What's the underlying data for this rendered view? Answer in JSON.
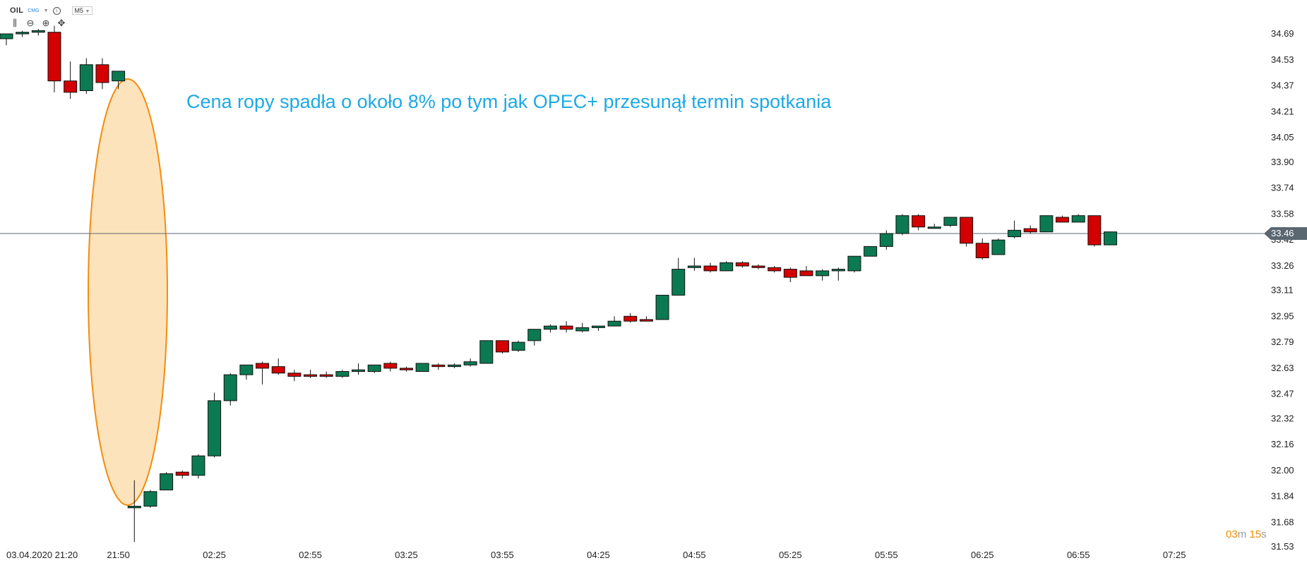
{
  "header": {
    "symbol": "OIL",
    "exchange": "CMG",
    "info_icon": "info-icon",
    "timeframe": "M5"
  },
  "tools": [
    "bar-style-icon",
    "zoom-out-icon",
    "zoom-in-icon",
    "crosshair-icon"
  ],
  "annotation": "Cena ropy spadła o około 8% po tym jak OPEC+ przesunął termin spotkania",
  "timer": {
    "minutes": "03",
    "m_unit": "m",
    "seconds": "15",
    "s_unit": "s"
  },
  "colors": {
    "up": "#0b7a52",
    "down": "#d40000",
    "current_line": "#5a6670",
    "ellipse_fill": "#fde3bb",
    "ellipse_stroke": "#f28c0f",
    "annotation": "#1ca9e6"
  },
  "chart_data": {
    "type": "candlestick",
    "symbol": "OIL",
    "timeframe": "M5",
    "current_price": 33.46,
    "y_ticks": [
      34.69,
      34.53,
      34.37,
      34.21,
      34.05,
      33.9,
      33.74,
      33.58,
      33.42,
      33.26,
      33.11,
      32.95,
      32.79,
      32.63,
      32.47,
      32.32,
      32.16,
      32.0,
      31.84,
      31.68,
      31.53
    ],
    "x_ticks": [
      {
        "label": "03.04.2020 21:20",
        "index": 3
      },
      {
        "label": "21:50",
        "index": 7
      },
      {
        "label": "02:25",
        "index": 13
      },
      {
        "label": "02:55",
        "index": 19
      },
      {
        "label": "03:25",
        "index": 25
      },
      {
        "label": "03:55",
        "index": 31
      },
      {
        "label": "04:25",
        "index": 37
      },
      {
        "label": "04:55",
        "index": 43
      },
      {
        "label": "05:25",
        "index": 49
      },
      {
        "label": "05:55",
        "index": 55
      },
      {
        "label": "06:25",
        "index": 61
      },
      {
        "label": "06:55",
        "index": 67
      },
      {
        "label": "07:25",
        "index": 73
      }
    ],
    "candles": [
      {
        "o": 34.66,
        "h": 34.69,
        "l": 34.62,
        "c": 34.69
      },
      {
        "o": 34.69,
        "h": 34.71,
        "l": 34.67,
        "c": 34.7
      },
      {
        "o": 34.7,
        "h": 34.72,
        "l": 34.68,
        "c": 34.71
      },
      {
        "o": 34.7,
        "h": 34.74,
        "l": 34.33,
        "c": 34.4
      },
      {
        "o": 34.4,
        "h": 34.52,
        "l": 34.29,
        "c": 34.33
      },
      {
        "o": 34.34,
        "h": 34.54,
        "l": 34.32,
        "c": 34.5
      },
      {
        "o": 34.5,
        "h": 34.54,
        "l": 34.35,
        "c": 34.39
      },
      {
        "o": 34.4,
        "h": 34.46,
        "l": 34.35,
        "c": 34.46
      },
      {
        "o": 31.77,
        "h": 31.94,
        "l": 31.56,
        "c": 31.78
      },
      {
        "o": 31.78,
        "h": 31.88,
        "l": 31.77,
        "c": 31.87
      },
      {
        "o": 31.88,
        "h": 31.99,
        "l": 31.88,
        "c": 31.98
      },
      {
        "o": 31.99,
        "h": 32.0,
        "l": 31.95,
        "c": 31.97
      },
      {
        "o": 31.97,
        "h": 32.1,
        "l": 31.95,
        "c": 32.09
      },
      {
        "o": 32.09,
        "h": 32.48,
        "l": 32.08,
        "c": 32.43
      },
      {
        "o": 32.43,
        "h": 32.6,
        "l": 32.4,
        "c": 32.59
      },
      {
        "o": 32.59,
        "h": 32.65,
        "l": 32.56,
        "c": 32.65
      },
      {
        "o": 32.66,
        "h": 32.67,
        "l": 32.53,
        "c": 32.63
      },
      {
        "o": 32.64,
        "h": 32.69,
        "l": 32.59,
        "c": 32.6
      },
      {
        "o": 32.6,
        "h": 32.62,
        "l": 32.55,
        "c": 32.58
      },
      {
        "o": 32.59,
        "h": 32.62,
        "l": 32.57,
        "c": 32.58
      },
      {
        "o": 32.59,
        "h": 32.61,
        "l": 32.57,
        "c": 32.58
      },
      {
        "o": 32.58,
        "h": 32.62,
        "l": 32.57,
        "c": 32.61
      },
      {
        "o": 32.61,
        "h": 32.66,
        "l": 32.59,
        "c": 32.62
      },
      {
        "o": 32.61,
        "h": 32.65,
        "l": 32.6,
        "c": 32.65
      },
      {
        "o": 32.66,
        "h": 32.67,
        "l": 32.61,
        "c": 32.63
      },
      {
        "o": 32.63,
        "h": 32.64,
        "l": 32.61,
        "c": 32.62
      },
      {
        "o": 32.61,
        "h": 32.66,
        "l": 32.61,
        "c": 32.66
      },
      {
        "o": 32.65,
        "h": 32.66,
        "l": 32.62,
        "c": 32.64
      },
      {
        "o": 32.64,
        "h": 32.66,
        "l": 32.63,
        "c": 32.65
      },
      {
        "o": 32.65,
        "h": 32.69,
        "l": 32.64,
        "c": 32.67
      },
      {
        "o": 32.66,
        "h": 32.8,
        "l": 32.66,
        "c": 32.8
      },
      {
        "o": 32.8,
        "h": 32.8,
        "l": 32.72,
        "c": 32.73
      },
      {
        "o": 32.74,
        "h": 32.8,
        "l": 32.73,
        "c": 32.79
      },
      {
        "o": 32.8,
        "h": 32.87,
        "l": 32.77,
        "c": 32.87
      },
      {
        "o": 32.87,
        "h": 32.9,
        "l": 32.85,
        "c": 32.89
      },
      {
        "o": 32.89,
        "h": 32.92,
        "l": 32.85,
        "c": 32.87
      },
      {
        "o": 32.86,
        "h": 32.91,
        "l": 32.85,
        "c": 32.88
      },
      {
        "o": 32.88,
        "h": 32.89,
        "l": 32.86,
        "c": 32.89
      },
      {
        "o": 32.89,
        "h": 32.95,
        "l": 32.89,
        "c": 32.92
      },
      {
        "o": 32.95,
        "h": 32.97,
        "l": 32.91,
        "c": 32.92
      },
      {
        "o": 32.93,
        "h": 32.95,
        "l": 32.92,
        "c": 32.92
      },
      {
        "o": 32.93,
        "h": 33.08,
        "l": 32.93,
        "c": 33.08
      },
      {
        "o": 33.08,
        "h": 33.31,
        "l": 33.08,
        "c": 33.24
      },
      {
        "o": 33.25,
        "h": 33.31,
        "l": 33.23,
        "c": 33.26
      },
      {
        "o": 33.26,
        "h": 33.28,
        "l": 33.22,
        "c": 33.23
      },
      {
        "o": 33.23,
        "h": 33.29,
        "l": 33.23,
        "c": 33.28
      },
      {
        "o": 33.28,
        "h": 33.29,
        "l": 33.25,
        "c": 33.26
      },
      {
        "o": 33.26,
        "h": 33.27,
        "l": 33.24,
        "c": 33.25
      },
      {
        "o": 33.25,
        "h": 33.26,
        "l": 33.22,
        "c": 33.23
      },
      {
        "o": 33.24,
        "h": 33.25,
        "l": 33.16,
        "c": 33.19
      },
      {
        "o": 33.23,
        "h": 33.26,
        "l": 33.2,
        "c": 33.2
      },
      {
        "o": 33.2,
        "h": 33.24,
        "l": 33.17,
        "c": 33.23
      },
      {
        "o": 33.23,
        "h": 33.25,
        "l": 33.17,
        "c": 33.24
      },
      {
        "o": 33.23,
        "h": 33.32,
        "l": 33.22,
        "c": 33.32
      },
      {
        "o": 33.32,
        "h": 33.38,
        "l": 33.32,
        "c": 33.38
      },
      {
        "o": 33.38,
        "h": 33.48,
        "l": 33.36,
        "c": 33.46
      },
      {
        "o": 33.46,
        "h": 33.58,
        "l": 33.45,
        "c": 33.57
      },
      {
        "o": 33.57,
        "h": 33.58,
        "l": 33.48,
        "c": 33.5
      },
      {
        "o": 33.5,
        "h": 33.52,
        "l": 33.49,
        "c": 33.5
      },
      {
        "o": 33.51,
        "h": 33.56,
        "l": 33.5,
        "c": 33.56
      },
      {
        "o": 33.56,
        "h": 33.56,
        "l": 33.38,
        "c": 33.4
      },
      {
        "o": 33.4,
        "h": 33.43,
        "l": 33.3,
        "c": 33.31
      },
      {
        "o": 33.33,
        "h": 33.43,
        "l": 33.33,
        "c": 33.42
      },
      {
        "o": 33.44,
        "h": 33.54,
        "l": 33.43,
        "c": 33.48
      },
      {
        "o": 33.49,
        "h": 33.51,
        "l": 33.46,
        "c": 33.47
      },
      {
        "o": 33.47,
        "h": 33.57,
        "l": 33.47,
        "c": 33.57
      },
      {
        "o": 33.56,
        "h": 33.57,
        "l": 33.53,
        "c": 33.53
      },
      {
        "o": 33.53,
        "h": 33.58,
        "l": 33.53,
        "c": 33.57
      },
      {
        "o": 33.57,
        "h": 33.57,
        "l": 33.38,
        "c": 33.39
      },
      {
        "o": 33.39,
        "h": 33.47,
        "l": 33.39,
        "c": 33.47
      }
    ]
  }
}
